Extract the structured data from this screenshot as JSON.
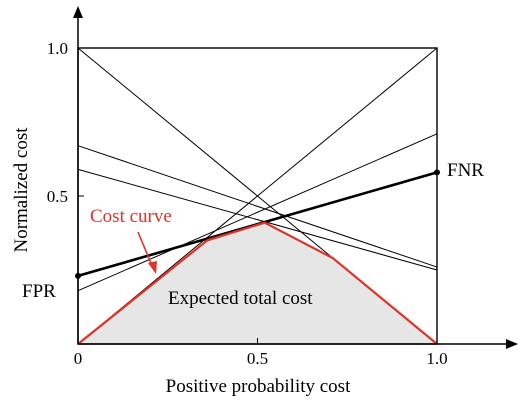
{
  "chart_data": {
    "type": "line",
    "xlabel": "Positive probability cost",
    "ylabel": "Normalized cost",
    "xlim": [
      0,
      1.2
    ],
    "ylim": [
      0,
      1.0
    ],
    "x_ticks": [
      {
        "value": 0,
        "label": "0"
      },
      {
        "value": 0.5,
        "label": "0.5"
      },
      {
        "value": 1.0,
        "label": "1.0"
      }
    ],
    "y_ticks": [
      {
        "value": 0.5,
        "label": "0.5"
      },
      {
        "value": 1.0,
        "label": "1.0"
      }
    ],
    "frame": {
      "x": [
        0,
        1.0
      ],
      "y": [
        0,
        1.0
      ]
    },
    "thin_lines": [
      {
        "x": [
          0,
          1.0
        ],
        "y": [
          0,
          1.0
        ]
      },
      {
        "x": [
          0,
          1.0
        ],
        "y": [
          1.0,
          0
        ]
      },
      {
        "x": [
          0,
          1.0
        ],
        "y": [
          0.67,
          0.26
        ]
      },
      {
        "x": [
          0,
          1.0
        ],
        "y": [
          0.59,
          0.25
        ]
      },
      {
        "x": [
          0,
          1.0
        ],
        "y": [
          0.18,
          0.71
        ]
      }
    ],
    "cost_lines": [
      {
        "x": [
          0,
          1.0
        ],
        "y": [
          0.23,
          0.58
        ],
        "start_label": "FPR",
        "end_label": "FNR"
      }
    ],
    "cost_curve": {
      "name": "Cost curve",
      "color": "#e0332a",
      "points": [
        [
          0,
          0
        ],
        [
          0.36,
          0.35
        ],
        [
          0.52,
          0.41
        ],
        [
          0.71,
          0.29
        ],
        [
          1.0,
          0
        ]
      ]
    },
    "area_label": "Expected total cost",
    "fill_color": "#e6e6e6"
  }
}
